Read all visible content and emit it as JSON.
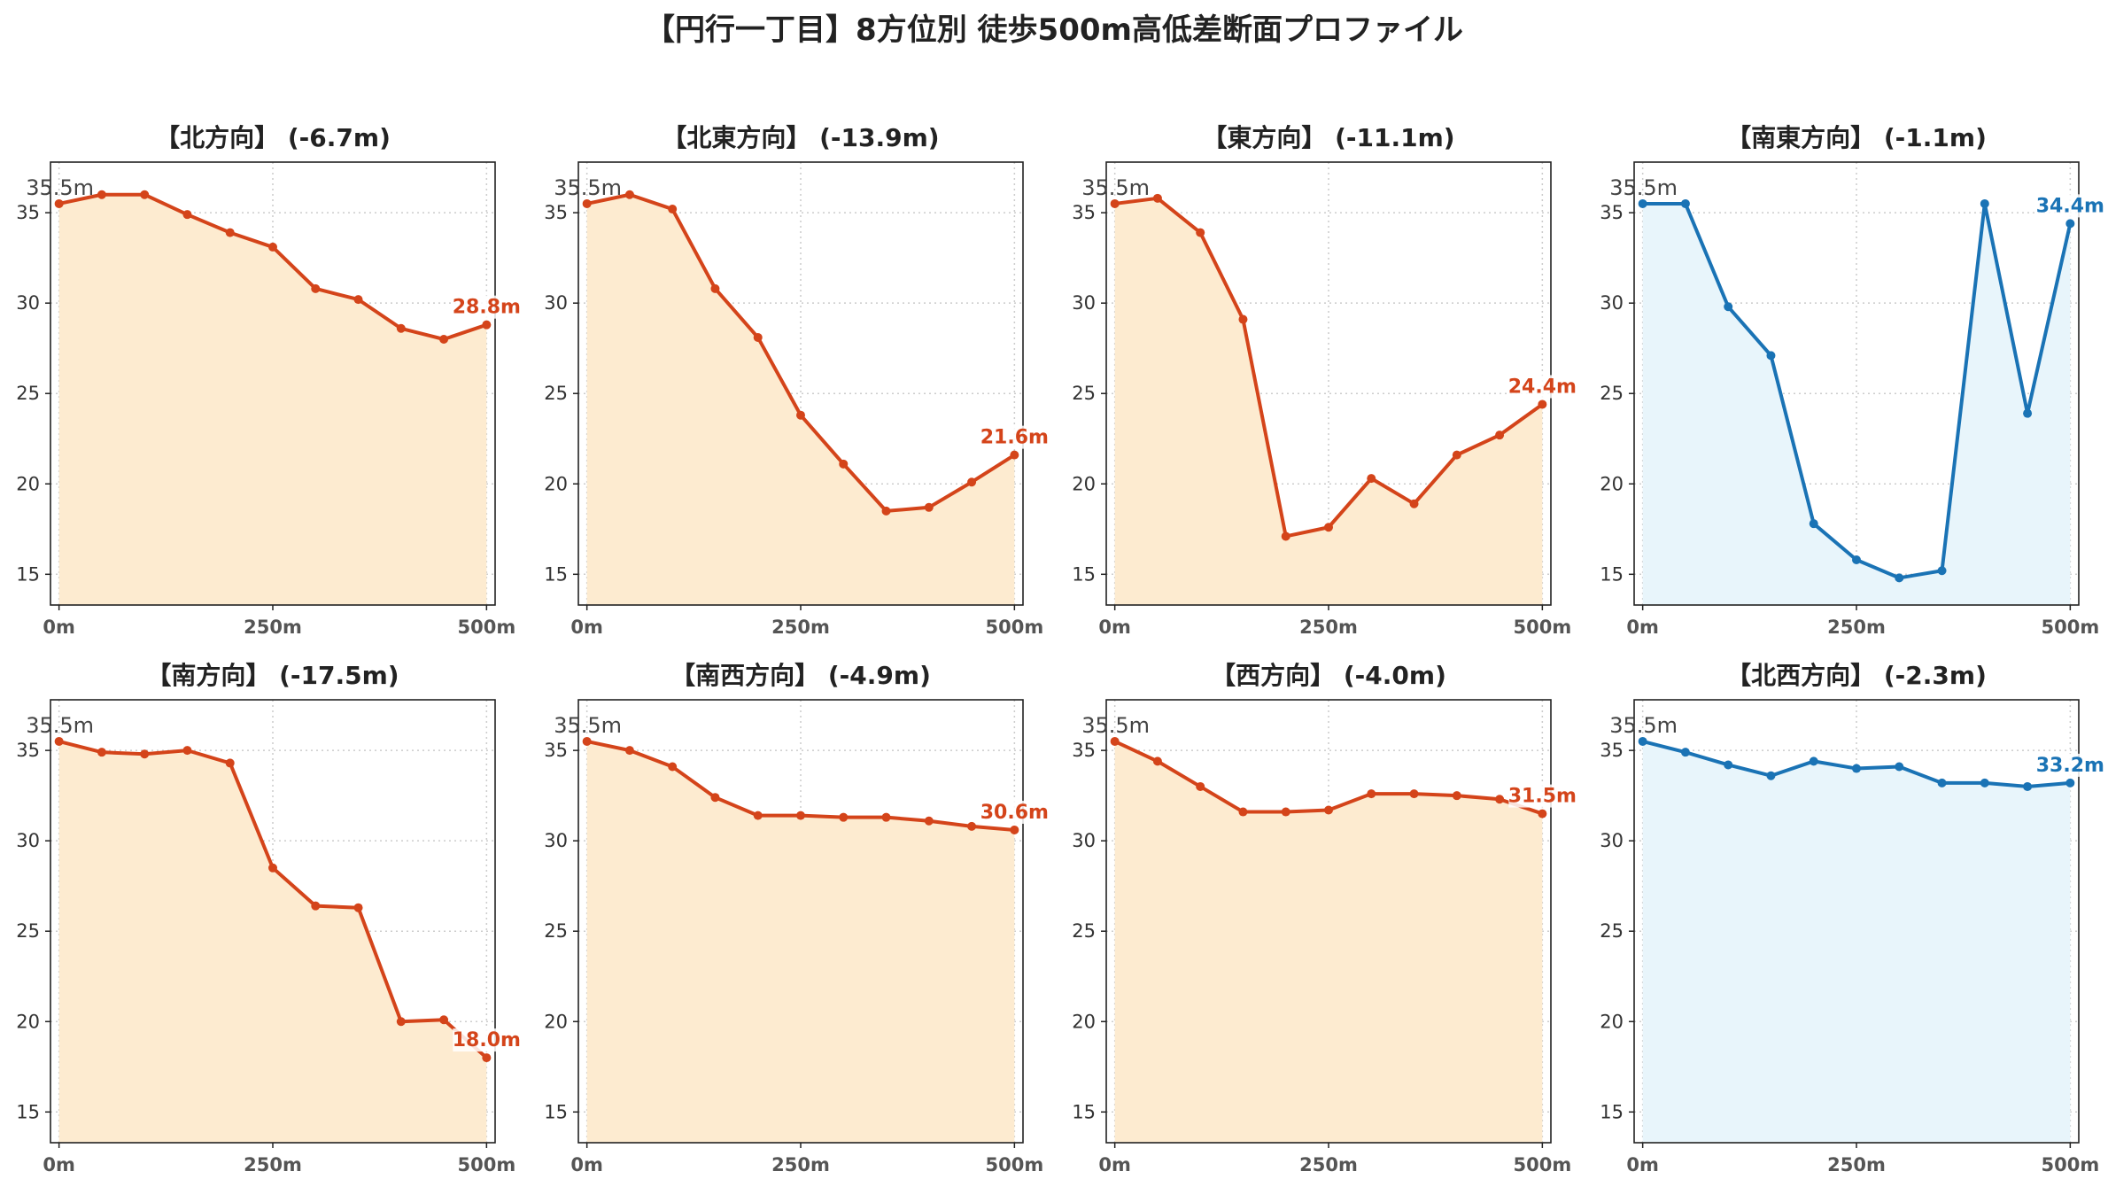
{
  "title": "【円行一丁目】8方位別 徒歩500m高低差断面プロファイル",
  "colors": {
    "down_line": "#d4441a",
    "down_fill": "#fdebd0",
    "up_line": "#1a73b5",
    "up_fill": "#e8f5fb",
    "start_label": "#444444",
    "grid": "#cccccc"
  },
  "chart_data": [
    {
      "type": "area",
      "title": "【北方向】 (-6.7m)",
      "start_label": "35.5m",
      "end_label": "28.8m",
      "trend": "down",
      "x": [
        0,
        50,
        100,
        150,
        200,
        250,
        300,
        350,
        400,
        450,
        500
      ],
      "y": [
        35.5,
        36.0,
        36.0,
        34.9,
        33.9,
        33.1,
        30.8,
        30.2,
        28.6,
        28.0,
        28.8
      ],
      "xticks": [
        "0m",
        "250m",
        "500m"
      ],
      "xtick_values": [
        0,
        250,
        500
      ],
      "yticks": [
        15,
        20,
        25,
        30,
        35
      ],
      "xlim": [
        -10,
        510
      ],
      "ylim": [
        13.3,
        37.8
      ],
      "grid": true
    },
    {
      "type": "area",
      "title": "【北東方向】 (-13.9m)",
      "start_label": "35.5m",
      "end_label": "21.6m",
      "trend": "down",
      "x": [
        0,
        50,
        100,
        150,
        200,
        250,
        300,
        350,
        400,
        450,
        500
      ],
      "y": [
        35.5,
        36.0,
        35.2,
        30.8,
        28.1,
        23.8,
        21.1,
        18.5,
        18.7,
        20.1,
        21.6
      ],
      "xticks": [
        "0m",
        "250m",
        "500m"
      ],
      "xtick_values": [
        0,
        250,
        500
      ],
      "yticks": [
        15,
        20,
        25,
        30,
        35
      ],
      "xlim": [
        -10,
        510
      ],
      "ylim": [
        13.3,
        37.8
      ],
      "grid": true
    },
    {
      "type": "area",
      "title": "【東方向】 (-11.1m)",
      "start_label": "35.5m",
      "end_label": "24.4m",
      "trend": "down",
      "x": [
        0,
        50,
        100,
        150,
        200,
        250,
        300,
        350,
        400,
        450,
        500
      ],
      "y": [
        35.5,
        35.8,
        33.9,
        29.1,
        17.1,
        17.6,
        20.3,
        18.9,
        21.6,
        22.7,
        24.4
      ],
      "xticks": [
        "0m",
        "250m",
        "500m"
      ],
      "xtick_values": [
        0,
        250,
        500
      ],
      "yticks": [
        15,
        20,
        25,
        30,
        35
      ],
      "xlim": [
        -10,
        510
      ],
      "ylim": [
        13.3,
        37.8
      ],
      "grid": true
    },
    {
      "type": "area",
      "title": "【南東方向】 (-1.1m)",
      "start_label": "35.5m",
      "end_label": "34.4m",
      "trend": "up",
      "x": [
        0,
        50,
        100,
        150,
        200,
        250,
        300,
        350,
        400,
        450,
        500
      ],
      "y": [
        35.5,
        35.5,
        29.8,
        27.1,
        17.8,
        15.8,
        14.8,
        15.2,
        35.5,
        23.9,
        34.4
      ],
      "xticks": [
        "0m",
        "250m",
        "500m"
      ],
      "xtick_values": [
        0,
        250,
        500
      ],
      "yticks": [
        15,
        20,
        25,
        30,
        35
      ],
      "xlim": [
        -10,
        510
      ],
      "ylim": [
        13.3,
        37.8
      ],
      "grid": true
    },
    {
      "type": "area",
      "title": "【南方向】 (-17.5m)",
      "start_label": "35.5m",
      "end_label": "18.0m",
      "trend": "down",
      "x": [
        0,
        50,
        100,
        150,
        200,
        250,
        300,
        350,
        400,
        450,
        500
      ],
      "y": [
        35.5,
        34.9,
        34.8,
        35.0,
        34.3,
        28.5,
        26.4,
        26.3,
        20.0,
        20.1,
        18.0
      ],
      "xticks": [
        "0m",
        "250m",
        "500m"
      ],
      "xtick_values": [
        0,
        250,
        500
      ],
      "yticks": [
        15,
        20,
        25,
        30,
        35
      ],
      "xlim": [
        -10,
        510
      ],
      "ylim": [
        13.3,
        37.8
      ],
      "grid": true
    },
    {
      "type": "area",
      "title": "【南西方向】 (-4.9m)",
      "start_label": "35.5m",
      "end_label": "30.6m",
      "trend": "down",
      "x": [
        0,
        50,
        100,
        150,
        200,
        250,
        300,
        350,
        400,
        450,
        500
      ],
      "y": [
        35.5,
        35.0,
        34.1,
        32.4,
        31.4,
        31.4,
        31.3,
        31.3,
        31.1,
        30.8,
        30.6
      ],
      "xticks": [
        "0m",
        "250m",
        "500m"
      ],
      "xtick_values": [
        0,
        250,
        500
      ],
      "yticks": [
        15,
        20,
        25,
        30,
        35
      ],
      "xlim": [
        -10,
        510
      ],
      "ylim": [
        13.3,
        37.8
      ],
      "grid": true
    },
    {
      "type": "area",
      "title": "【西方向】 (-4.0m)",
      "start_label": "35.5m",
      "end_label": "31.5m",
      "trend": "down",
      "x": [
        0,
        50,
        100,
        150,
        200,
        250,
        300,
        350,
        400,
        450,
        500
      ],
      "y": [
        35.5,
        34.4,
        33.0,
        31.6,
        31.6,
        31.7,
        32.6,
        32.6,
        32.5,
        32.3,
        31.5
      ],
      "xticks": [
        "0m",
        "250m",
        "500m"
      ],
      "xtick_values": [
        0,
        250,
        500
      ],
      "yticks": [
        15,
        20,
        25,
        30,
        35
      ],
      "xlim": [
        -10,
        510
      ],
      "ylim": [
        13.3,
        37.8
      ],
      "grid": true
    },
    {
      "type": "area",
      "title": "【北西方向】 (-2.3m)",
      "start_label": "35.5m",
      "end_label": "33.2m",
      "trend": "up",
      "x": [
        0,
        50,
        100,
        150,
        200,
        250,
        300,
        350,
        400,
        450,
        500
      ],
      "y": [
        35.5,
        34.9,
        34.2,
        33.6,
        34.4,
        34.0,
        34.1,
        33.2,
        33.2,
        33.0,
        33.2
      ],
      "xticks": [
        "0m",
        "250m",
        "500m"
      ],
      "xtick_values": [
        0,
        250,
        500
      ],
      "yticks": [
        15,
        20,
        25,
        30,
        35
      ],
      "xlim": [
        -10,
        510
      ],
      "ylim": [
        13.3,
        37.8
      ],
      "grid": true
    }
  ]
}
